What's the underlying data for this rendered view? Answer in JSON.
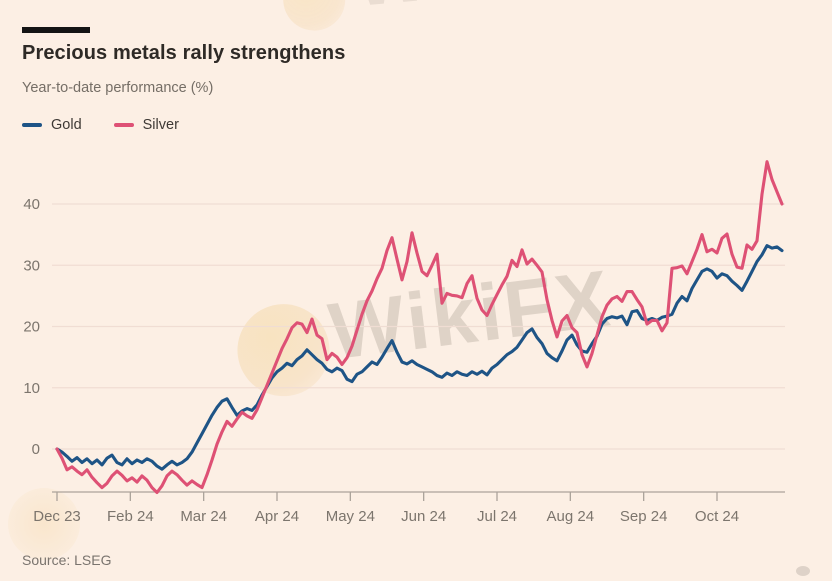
{
  "header": {
    "title": "Precious metals rally strengthens",
    "subtitle": "Year-to-date performance (%)"
  },
  "legend": [
    {
      "label": "Gold",
      "color": "#1E5486"
    },
    {
      "label": "Silver",
      "color": "#DE5175"
    }
  ],
  "source": "Source: LSEG",
  "watermark": {
    "text": "WikiFX"
  },
  "colors": {
    "background": "#FCEFE4",
    "title": "#2E2A26",
    "subtitle": "#756E66",
    "axis_text": "#7C756D",
    "axis_line": "#ABA29A",
    "gridline": "#F0DDD3",
    "gold": "#1E5486",
    "silver": "#DE5175"
  },
  "chart_data": {
    "type": "line",
    "title": "Precious metals rally strengthens",
    "subtitle": "Year-to-date performance (%)",
    "ylabel": "Year-to-date performance (%)",
    "x_tick_labels": [
      "Dec 23",
      "Feb 24",
      "Mar 24",
      "Apr 24",
      "May 24",
      "Jun 24",
      "Jul 24",
      "Aug 24",
      "Sep 24",
      "Oct 24"
    ],
    "y_ticks": [
      0,
      10,
      20,
      30,
      40
    ],
    "ylim": [
      -7.5,
      47.5
    ],
    "grid": true,
    "legend_position": "top-left",
    "series": [
      {
        "name": "Gold",
        "values": [
          0.0,
          -0.5,
          -1.2,
          -2.0,
          -1.4,
          -2.2,
          -1.6,
          -2.4,
          -1.8,
          -2.6,
          -1.5,
          -1.0,
          -2.2,
          -2.6,
          -1.6,
          -2.4,
          -1.8,
          -2.2,
          -1.6,
          -2.0,
          -2.8,
          -3.3,
          -2.6,
          -2.0,
          -2.6,
          -2.2,
          -1.6,
          -0.5,
          1.0,
          2.5,
          4.0,
          5.5,
          6.8,
          7.8,
          8.2,
          6.8,
          5.5,
          6.2,
          6.6,
          6.3,
          7.2,
          8.8,
          10.2,
          11.6,
          12.6,
          13.2,
          14.0,
          13.6,
          14.6,
          15.2,
          16.2,
          15.4,
          14.6,
          14.0,
          13.0,
          12.6,
          13.2,
          12.8,
          11.4,
          11.0,
          12.2,
          12.6,
          13.4,
          14.2,
          13.8,
          15.0,
          16.4,
          17.7,
          15.8,
          14.2,
          13.9,
          14.4,
          13.8,
          13.4,
          13.0,
          12.6,
          12.0,
          11.7,
          12.4,
          12.0,
          12.6,
          12.2,
          12.0,
          12.6,
          12.2,
          12.7,
          12.1,
          13.2,
          13.8,
          14.6,
          15.4,
          15.9,
          16.6,
          17.8,
          19.0,
          19.6,
          18.2,
          17.2,
          15.6,
          14.9,
          14.4,
          16.0,
          17.8,
          18.6,
          17.0,
          16.0,
          15.8,
          17.2,
          18.4,
          20.4,
          21.3,
          21.6,
          21.4,
          21.7,
          20.3,
          22.4,
          22.6,
          21.3,
          21.0,
          21.3,
          21.0,
          21.5,
          21.7,
          22.0,
          23.8,
          24.9,
          24.2,
          26.2,
          27.6,
          29.0,
          29.4,
          29.0,
          27.9,
          28.6,
          28.3,
          27.4,
          26.7,
          25.9,
          27.4,
          29.0,
          30.6,
          31.7,
          33.2,
          32.8,
          33.0,
          32.4
        ]
      },
      {
        "name": "Silver",
        "values": [
          0.0,
          -1.5,
          -3.4,
          -2.9,
          -3.6,
          -4.2,
          -3.4,
          -4.6,
          -5.5,
          -6.3,
          -5.6,
          -4.4,
          -3.6,
          -4.3,
          -5.2,
          -4.7,
          -5.4,
          -4.4,
          -5.1,
          -6.3,
          -7.1,
          -6.0,
          -4.4,
          -3.6,
          -4.2,
          -5.1,
          -5.9,
          -5.2,
          -5.8,
          -6.3,
          -4.2,
          -1.8,
          0.8,
          2.8,
          4.5,
          3.7,
          4.9,
          6.0,
          5.4,
          5.0,
          6.4,
          8.4,
          10.4,
          12.4,
          14.4,
          16.4,
          18.0,
          19.8,
          20.6,
          20.4,
          19.0,
          21.2,
          18.6,
          18.0,
          14.6,
          15.6,
          15.0,
          13.8,
          14.9,
          16.8,
          19.4,
          22.0,
          24.2,
          25.8,
          27.8,
          29.5,
          32.4,
          34.5,
          31.0,
          27.6,
          30.6,
          35.3,
          32.0,
          29.0,
          28.3,
          30.0,
          31.8,
          23.8,
          25.4,
          25.1,
          25.0,
          24.7,
          27.0,
          28.3,
          24.6,
          22.7,
          21.8,
          23.6,
          25.2,
          26.8,
          28.2,
          30.8,
          29.8,
          32.5,
          30.2,
          31.0,
          30.0,
          28.9,
          24.4,
          21.0,
          18.3,
          20.9,
          21.8,
          19.8,
          19.0,
          15.4,
          13.4,
          15.6,
          18.6,
          21.6,
          23.5,
          24.5,
          24.9,
          24.1,
          25.7,
          25.7,
          24.4,
          23.2,
          20.4,
          21.0,
          21.0,
          19.3,
          20.6,
          29.5,
          29.6,
          29.9,
          28.6,
          30.6,
          32.6,
          35.0,
          32.2,
          32.6,
          32.0,
          34.4,
          35.1,
          31.8,
          29.7,
          29.5,
          33.3,
          32.6,
          34.0,
          41.6,
          46.9,
          44.0,
          42.0,
          40.0
        ]
      }
    ]
  }
}
